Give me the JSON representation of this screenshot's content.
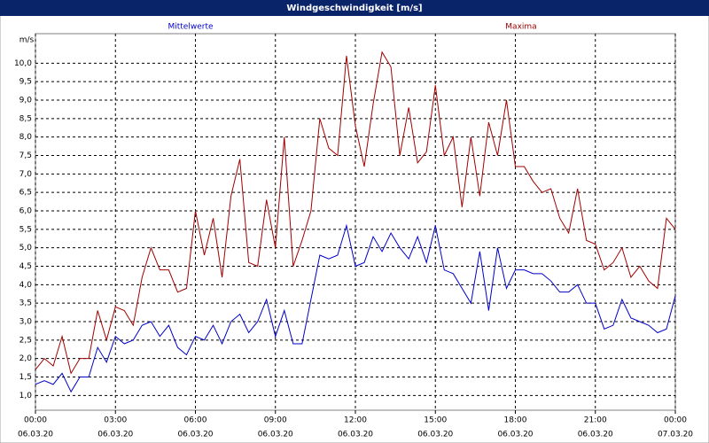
{
  "chart_data": {
    "type": "line",
    "title": "Windgeschwindigkeit [m/s]",
    "y_label": "m/s",
    "x": [
      0,
      20,
      40,
      60,
      80,
      100,
      120,
      140,
      160,
      180,
      200,
      220,
      240,
      260,
      280,
      300,
      320,
      340,
      360,
      380,
      400,
      420,
      440,
      460,
      480,
      500,
      520,
      540,
      560,
      580,
      600,
      620,
      640,
      660,
      680,
      700,
      720,
      740,
      760,
      780,
      800,
      820,
      840,
      860,
      880,
      900,
      920,
      940,
      960,
      980,
      1000,
      1020,
      1040,
      1060,
      1080,
      1100,
      1120,
      1140,
      1160,
      1180,
      1200,
      1220,
      1240,
      1260,
      1280,
      1300,
      1320,
      1340,
      1360,
      1380,
      1400,
      1420,
      1440
    ],
    "series": [
      {
        "name": "Mittelwerte",
        "color": "#0000c8",
        "values": [
          1.3,
          1.4,
          1.3,
          1.6,
          1.1,
          1.5,
          1.5,
          2.3,
          1.9,
          2.6,
          2.4,
          2.5,
          2.9,
          3.0,
          2.6,
          2.9,
          2.3,
          2.1,
          2.6,
          2.5,
          2.9,
          2.4,
          3.0,
          3.2,
          2.7,
          3.0,
          3.6,
          2.6,
          3.3,
          2.4,
          2.4,
          3.6,
          4.8,
          4.7,
          4.8,
          5.6,
          4.5,
          4.6,
          5.3,
          4.9,
          5.4,
          5.0,
          4.7,
          5.3,
          4.6,
          5.6,
          4.4,
          4.3,
          3.9,
          3.5,
          4.9,
          3.3,
          5.0,
          3.9,
          4.4,
          4.4,
          4.3,
          4.3,
          4.1,
          3.8,
          3.8,
          4.0,
          3.5,
          3.5,
          2.8,
          2.9,
          3.6,
          3.1,
          3.0,
          2.9,
          2.7,
          2.8,
          3.7
        ]
      },
      {
        "name": "Maxima",
        "color": "#a00000",
        "values": [
          1.7,
          2.0,
          1.8,
          2.6,
          1.6,
          2.0,
          2.0,
          3.3,
          2.5,
          3.4,
          3.3,
          2.9,
          4.2,
          5.0,
          4.4,
          4.4,
          3.8,
          3.9,
          6.0,
          4.8,
          5.8,
          4.2,
          6.4,
          7.4,
          4.6,
          4.5,
          6.3,
          5.0,
          8.0,
          4.5,
          5.2,
          6.0,
          8.5,
          7.7,
          7.5,
          10.2,
          8.3,
          7.2,
          8.9,
          10.3,
          9.9,
          7.5,
          8.8,
          7.3,
          7.6,
          9.4,
          7.5,
          8.0,
          6.1,
          8.0,
          6.4,
          8.4,
          7.5,
          9.0,
          7.2,
          7.2,
          6.8,
          6.5,
          6.6,
          5.8,
          5.4,
          6.6,
          5.2,
          5.1,
          4.4,
          4.6,
          5.0,
          4.2,
          4.5,
          4.1,
          3.9,
          5.8,
          5.5
        ]
      }
    ],
    "xlim": [
      0,
      1440
    ],
    "xticks": [
      {
        "value": 0,
        "label": "00:00",
        "date": "06.03.20"
      },
      {
        "value": 180,
        "label": "03:00",
        "date": "06.03.20"
      },
      {
        "value": 360,
        "label": "06:00",
        "date": "06.03.20"
      },
      {
        "value": 540,
        "label": "09:00",
        "date": "06.03.20"
      },
      {
        "value": 720,
        "label": "12:00",
        "date": "06.03.20"
      },
      {
        "value": 900,
        "label": "15:00",
        "date": "06.03.20"
      },
      {
        "value": 1080,
        "label": "18:00",
        "date": "06.03.20"
      },
      {
        "value": 1260,
        "label": "21:00",
        "date": "06.03.20"
      },
      {
        "value": 1440,
        "label": "00:00",
        "date": "07.03.20"
      }
    ],
    "ylim": [
      0.6,
      10.8
    ],
    "yticks": [
      {
        "value": 1.0,
        "label": "1,0"
      },
      {
        "value": 1.5,
        "label": "1,5"
      },
      {
        "value": 2.0,
        "label": "2,0"
      },
      {
        "value": 2.5,
        "label": "2,5"
      },
      {
        "value": 3.0,
        "label": "3,0"
      },
      {
        "value": 3.5,
        "label": "3,5"
      },
      {
        "value": 4.0,
        "label": "4,0"
      },
      {
        "value": 4.5,
        "label": "4,5"
      },
      {
        "value": 5.0,
        "label": "5,0"
      },
      {
        "value": 5.5,
        "label": "5,5"
      },
      {
        "value": 6.0,
        "label": "6,0"
      },
      {
        "value": 6.5,
        "label": "6,5"
      },
      {
        "value": 7.0,
        "label": "7,0"
      },
      {
        "value": 7.5,
        "label": "7,5"
      },
      {
        "value": 8.0,
        "label": "8,0"
      },
      {
        "value": 8.5,
        "label": "8,5"
      },
      {
        "value": 9.0,
        "label": "9,0"
      },
      {
        "value": 9.5,
        "label": "9,5"
      },
      {
        "value": 10.0,
        "label": "10,0"
      }
    ],
    "grid": true
  }
}
